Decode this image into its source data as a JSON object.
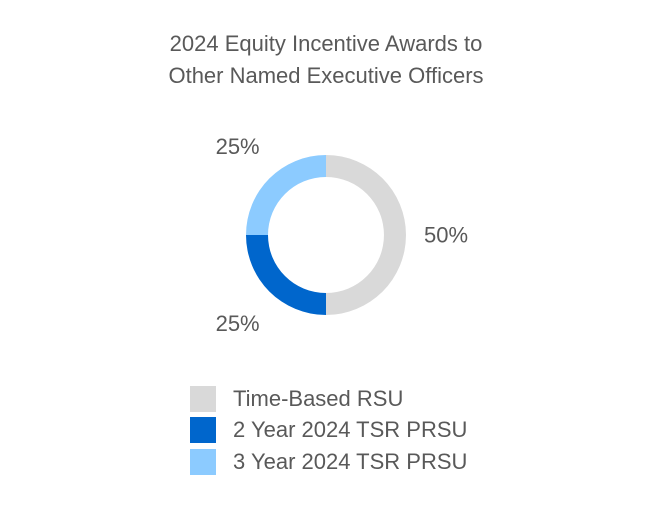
{
  "chart_data": {
    "type": "pie",
    "title": "2024 Equity Incentive Awards to",
    "subtitle": "Other Named Executive Officers",
    "donut": true,
    "slices": [
      {
        "label": "Time-Based RSU",
        "value": 50,
        "display": "50%",
        "color": "#D9D9D9"
      },
      {
        "label": "2 Year 2024 TSR PRSU",
        "value": 25,
        "display": "25%",
        "color": "#0066CC"
      },
      {
        "label": "3 Year 2024 TSR PRSU",
        "value": 25,
        "display": "25%",
        "color": "#8CCBFF"
      }
    ],
    "legend_position": "bottom"
  }
}
